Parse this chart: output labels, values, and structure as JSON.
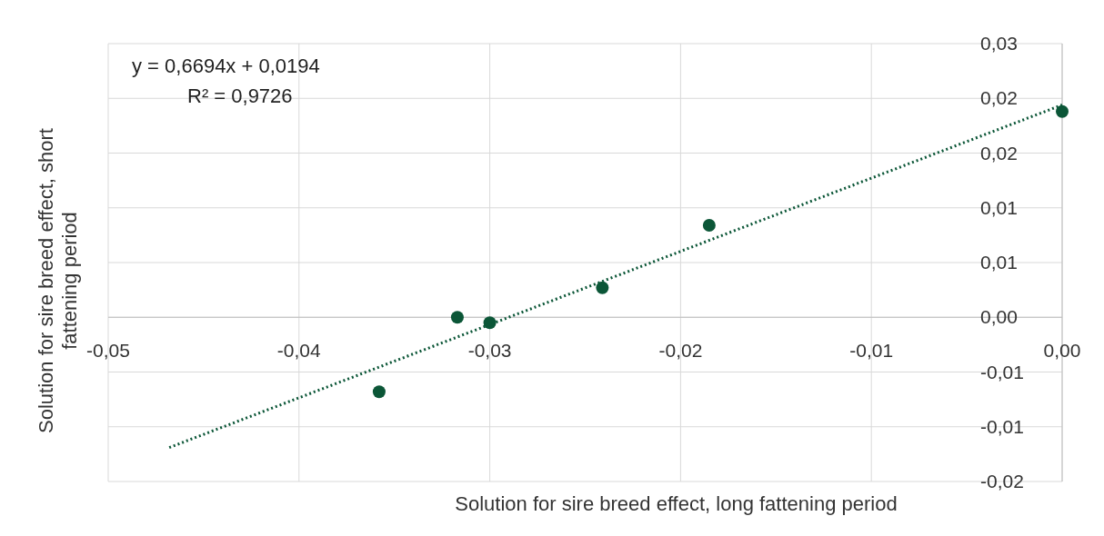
{
  "chart_data": {
    "type": "scatter",
    "xlabel": "Solution for sire breed effect, long fattening period",
    "ylabel": "Solution for sire breed effect, short fattening period",
    "x": [
      -0.0358,
      -0.0317,
      -0.03,
      -0.0241,
      -0.0185,
      0.0
    ],
    "series": [
      {
        "color": "#0b5637",
        "values": [
          -0.0068,
          0.0,
          -0.0005,
          0.0027,
          0.0084,
          0.0188
        ],
        "marker": "circle"
      },
      {
        "type": "line",
        "color": "#0b5637",
        "x": [
          -0.0468,
          0.0
        ],
        "values": [
          -0.0119,
          0.0194
        ],
        "line_style": "dotted"
      }
    ],
    "xlim": [
      -0.05,
      0
    ],
    "ylim": [
      -0.015,
      0.025
    ],
    "xticks": [
      {
        "value": -0.05,
        "label": "-0,05"
      },
      {
        "value": -0.04,
        "label": "-0,04"
      },
      {
        "value": -0.03,
        "label": "-0,03"
      },
      {
        "value": -0.02,
        "label": "-0,02"
      },
      {
        "value": -0.01,
        "label": "-0,01"
      },
      {
        "value": 0,
        "label": "0,00"
      }
    ],
    "yticks": [
      {
        "value": -0.015,
        "label": "-0,02"
      },
      {
        "value": -0.01,
        "label": "-0,01"
      },
      {
        "value": -0.005,
        "label": "-0,01"
      },
      {
        "value": 0,
        "label": "0,00"
      },
      {
        "value": 0.005,
        "label": "0,01"
      },
      {
        "value": 0.01,
        "label": "0,01"
      },
      {
        "value": 0.015,
        "label": "0,02"
      },
      {
        "value": 0.02,
        "label": "0,02"
      },
      {
        "value": 0.025,
        "label": "0,03"
      }
    ],
    "grid": true,
    "annotations": [
      "y = 0,6694x + 0,0194",
      "R² = 0,9726"
    ]
  }
}
